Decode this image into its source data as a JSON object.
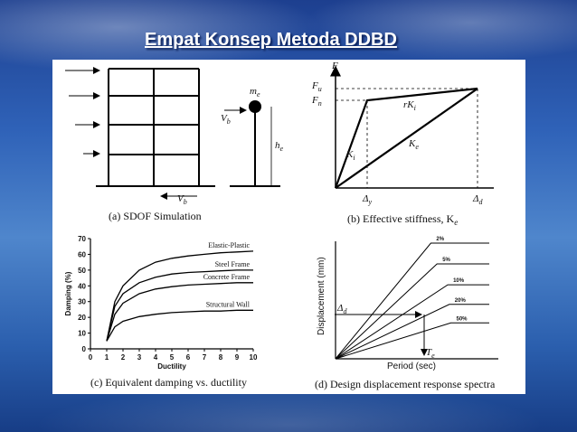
{
  "slide": {
    "title": "Empat Konsep Metoda DDBD"
  },
  "panel_a": {
    "caption": "(a) SDOF Simulation",
    "me": "m",
    "me_sub": "e",
    "vb": "V",
    "vb_sub": "b",
    "he": "h",
    "he_sub": "e",
    "vb_bottom": "V",
    "vb_bottom_sub": "b"
  },
  "panel_b": {
    "caption": "(b) Effective stiffness, K",
    "caption_sub": "e",
    "F": "F",
    "Fu": "F",
    "Fu_sub": "u",
    "Fn": "F",
    "Fn_sub": "n",
    "rK": "rK",
    "rK_sub": "i",
    "Ki": "K",
    "Ki_sub": "i",
    "Ke": "K",
    "Ke_sub": "e",
    "dy": "Δ",
    "dy_sub": "y",
    "dd": "Δ",
    "dd_sub": "d"
  },
  "panel_c": {
    "caption": "(c) Equivalent damping vs. ductility"
  },
  "panel_d": {
    "caption": "(d) Design displacement response spectra",
    "ylabel": "Displacement (mm)",
    "xlabel": "Period (sec)",
    "dd": "Δ",
    "dd_sub": "d",
    "te": "T",
    "te_sub": "e"
  },
  "chart_data": [
    {
      "type": "line",
      "xlabel": "Ductility",
      "ylabel": "Damping (%)",
      "xlim": [
        0,
        10
      ],
      "ylim": [
        0,
        70
      ],
      "x_ticks": [
        0,
        1,
        2,
        3,
        4,
        5,
        6,
        7,
        8,
        9,
        10
      ],
      "y_ticks": [
        0,
        10,
        20,
        30,
        40,
        50,
        60,
        70
      ],
      "series": [
        {
          "name": "Elastic-Plastic",
          "x": [
            1,
            1.5,
            2,
            3,
            4,
            5,
            6,
            7,
            8,
            9,
            10
          ],
          "values": [
            5,
            30,
            40,
            50,
            55,
            57.5,
            59,
            60,
            61,
            61.5,
            62
          ]
        },
        {
          "name": "Steel Frame",
          "x": [
            1,
            1.5,
            2,
            3,
            4,
            5,
            6,
            7,
            8,
            9,
            10
          ],
          "values": [
            5,
            27,
            35,
            42,
            45.5,
            47.5,
            48.5,
            49,
            49.5,
            50,
            50
          ]
        },
        {
          "name": "Concrete Frame",
          "x": [
            1,
            1.5,
            2,
            3,
            4,
            5,
            6,
            7,
            8,
            9,
            10
          ],
          "values": [
            5,
            22,
            29,
            35,
            38,
            39.5,
            40.5,
            41,
            41.5,
            42,
            42
          ]
        },
        {
          "name": "Structural Wall",
          "x": [
            1,
            1.5,
            2,
            3,
            4,
            5,
            6,
            7,
            8,
            9,
            10
          ],
          "values": [
            5,
            14,
            17.5,
            20.5,
            22,
            23,
            23.5,
            24,
            24,
            24.5,
            24.5
          ]
        }
      ]
    },
    {
      "type": "line",
      "xlabel": "Period (sec)",
      "ylabel": "Displacement (mm)",
      "xlim": [
        0,
        1
      ],
      "ylim": [
        0,
        1
      ],
      "series": [
        {
          "name": "2%",
          "x": [
            0,
            0.62,
            1
          ],
          "values": [
            0,
            1.0,
            1.0
          ]
        },
        {
          "name": "5%",
          "x": [
            0,
            0.66,
            1
          ],
          "values": [
            0,
            0.82,
            0.82
          ]
        },
        {
          "name": "10%",
          "x": [
            0,
            0.73,
            1
          ],
          "values": [
            0,
            0.64,
            0.64
          ]
        },
        {
          "name": "20%",
          "x": [
            0,
            0.74,
            1
          ],
          "values": [
            0,
            0.47,
            0.47
          ]
        },
        {
          "name": "50%",
          "x": [
            0,
            0.75,
            1
          ],
          "values": [
            0,
            0.31,
            0.31
          ]
        }
      ]
    }
  ]
}
